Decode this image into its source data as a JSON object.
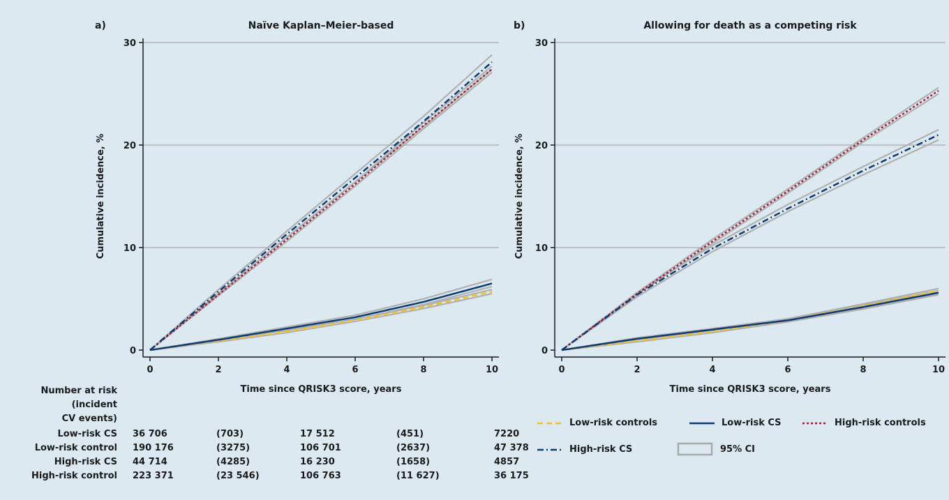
{
  "panel_labels": [
    "a)",
    "b)"
  ],
  "chart_data": [
    {
      "type": "line",
      "title": "Naïve Kaplan–Meier-based",
      "xlabel": "Time since QRISK3 score, years",
      "ylabel": "Cumulative incidence, %",
      "xlim": [
        0,
        10
      ],
      "ylim": [
        0,
        30
      ],
      "xticks": [
        "0",
        "2",
        "4",
        "6",
        "8",
        "10"
      ],
      "yticks": [
        "0",
        "10",
        "20",
        "30"
      ],
      "grid": "horizontal",
      "series": [
        {
          "name": "Low-risk controls",
          "color": "#f2c12e",
          "style": "dash",
          "x": [
            0,
            2,
            4,
            6,
            8,
            10
          ],
          "y": [
            0,
            0.9,
            1.8,
            2.9,
            4.2,
            5.7
          ],
          "ci_low": [
            0,
            0.8,
            1.7,
            2.8,
            4.05,
            5.5
          ],
          "ci_high": [
            0,
            1.0,
            1.9,
            3.0,
            4.35,
            5.9
          ]
        },
        {
          "name": "Low-risk CS",
          "color": "#0d3a73",
          "style": "solid",
          "x": [
            0,
            2,
            4,
            6,
            8,
            10
          ],
          "y": [
            0,
            1.0,
            2.1,
            3.2,
            4.7,
            6.5
          ],
          "ci_low": [
            0,
            0.9,
            1.95,
            3.0,
            4.45,
            6.2
          ],
          "ci_high": [
            0,
            1.1,
            2.25,
            3.4,
            5.0,
            6.9
          ]
        },
        {
          "name": "High-risk controls",
          "color": "#a3203c",
          "style": "dot",
          "x": [
            0,
            2,
            4,
            6,
            8,
            10
          ],
          "y": [
            0,
            5.4,
            10.8,
            16.2,
            21.9,
            27.4
          ],
          "ci_low": [
            0,
            5.3,
            10.6,
            16.0,
            21.6,
            27.1
          ],
          "ci_high": [
            0,
            5.5,
            11.0,
            16.4,
            22.2,
            27.7
          ]
        },
        {
          "name": "High-risk CS",
          "color": "#0d3a73",
          "style": "dashdot",
          "x": [
            0,
            2,
            4,
            6,
            8,
            10
          ],
          "y": [
            0,
            5.7,
            11.3,
            16.8,
            22.3,
            28.1
          ],
          "ci_low": [
            0,
            5.5,
            11.0,
            16.4,
            21.8,
            27.4
          ],
          "ci_high": [
            0,
            5.9,
            11.6,
            17.2,
            22.8,
            28.8
          ]
        }
      ]
    },
    {
      "type": "line",
      "title": "Allowing for death as a competing risk",
      "xlabel": "Time since QRISK3 score, years",
      "ylabel": "Cumulative incidence, %",
      "xlim": [
        0,
        10
      ],
      "ylim": [
        0,
        30
      ],
      "xticks": [
        "0",
        "2",
        "4",
        "6",
        "8",
        "10"
      ],
      "yticks": [
        "0",
        "10",
        "20",
        "30"
      ],
      "grid": "horizontal",
      "series": [
        {
          "name": "Low-risk controls",
          "color": "#f2c12e",
          "style": "dash",
          "x": [
            0,
            2,
            4,
            6,
            8,
            10
          ],
          "y": [
            0,
            0.9,
            1.8,
            2.9,
            4.3,
            5.8
          ],
          "ci_low": [
            0,
            0.8,
            1.7,
            2.75,
            4.1,
            5.5
          ],
          "ci_high": [
            0,
            1.0,
            1.9,
            3.05,
            4.5,
            6.0
          ]
        },
        {
          "name": "Low-risk CS",
          "color": "#0d3a73",
          "style": "solid",
          "x": [
            0,
            2,
            4,
            6,
            8,
            10
          ],
          "y": [
            0,
            1.1,
            2.0,
            2.9,
            4.2,
            5.6
          ],
          "ci_low": [
            0,
            1.0,
            1.9,
            2.75,
            4.0,
            5.4
          ],
          "ci_high": [
            0,
            1.2,
            2.1,
            3.05,
            4.4,
            5.8
          ]
        },
        {
          "name": "High-risk controls",
          "color": "#a3203c",
          "style": "dot",
          "x": [
            0,
            2,
            4,
            6,
            8,
            10
          ],
          "y": [
            0,
            5.5,
            10.6,
            15.5,
            20.5,
            25.3
          ],
          "ci_low": [
            0,
            5.4,
            10.4,
            15.3,
            20.3,
            25.0
          ],
          "ci_high": [
            0,
            5.6,
            10.8,
            15.7,
            20.7,
            25.6
          ]
        },
        {
          "name": "High-risk CS",
          "color": "#0d3a73",
          "style": "dashdot",
          "x": [
            0,
            2,
            4,
            6,
            8,
            10
          ],
          "y": [
            0,
            5.4,
            9.9,
            13.8,
            17.5,
            21.0
          ],
          "ci_low": [
            0,
            5.2,
            9.6,
            13.5,
            17.1,
            20.5
          ],
          "ci_high": [
            0,
            5.6,
            10.2,
            14.2,
            17.9,
            21.5
          ]
        }
      ]
    }
  ],
  "risk_table": {
    "header": [
      "Number at risk",
      "(incident",
      "CV events)"
    ],
    "rows": [
      {
        "label": "Low-risk CS",
        "cells": [
          "36 706",
          "(703)",
          "17 512",
          "(451)",
          "7220"
        ]
      },
      {
        "label": "Low-risk control",
        "cells": [
          "190 176",
          "(3275)",
          "106 701",
          "(2637)",
          "47 378"
        ]
      },
      {
        "label": "High-risk CS",
        "cells": [
          "44 714",
          "(4285)",
          "16 230",
          "(1658)",
          "4857"
        ]
      },
      {
        "label": "High-risk control",
        "cells": [
          "223 371",
          "(23 546)",
          "106 763",
          "(11 627)",
          "36 175"
        ]
      }
    ]
  },
  "legend": {
    "items": [
      {
        "label": "Low-risk controls",
        "style": "dash",
        "color": "#f2c12e"
      },
      {
        "label": "Low-risk CS",
        "style": "solid",
        "color": "#0d3a73"
      },
      {
        "label": "High-risk controls",
        "style": "dot",
        "color": "#a3203c"
      },
      {
        "label": "High-risk CS",
        "style": "dashdot",
        "color": "#0d3a73"
      },
      {
        "label": "95% CI",
        "style": "ci",
        "color": "#aaaaaa"
      }
    ]
  }
}
